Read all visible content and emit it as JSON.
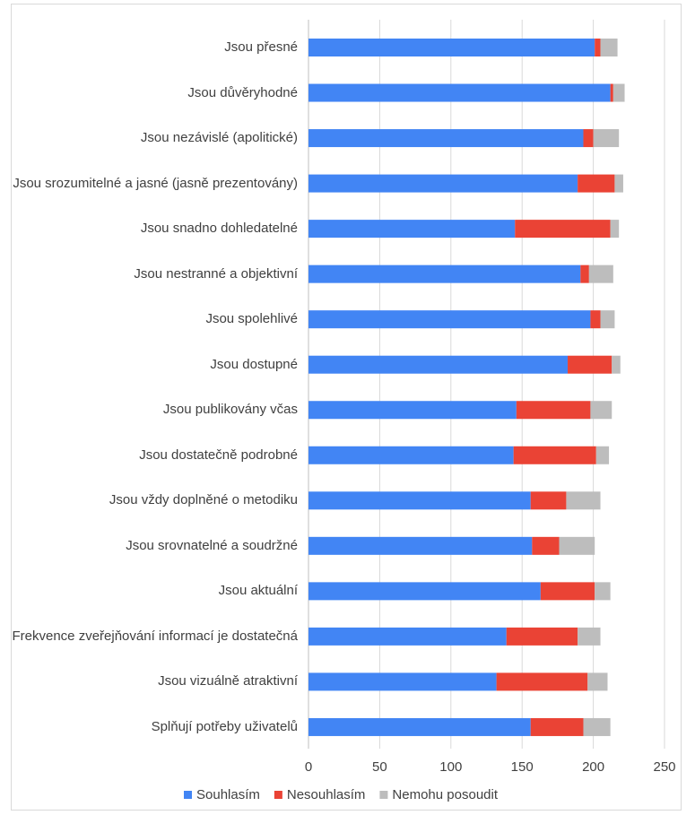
{
  "chart_data": {
    "type": "stacked-barh",
    "categories": [
      "Jsou přesné",
      "Jsou důvěryhodné",
      "Jsou nezávislé (apolitické)",
      "Jsou srozumitelné a jasné (jasně prezentovány)",
      "Jsou snadno dohledatelné",
      "Jsou nestranné a objektivní",
      "Jsou spolehlivé",
      "Jsou dostupné",
      "Jsou publikovány včas",
      "Jsou dostatečně podrobné",
      "Jsou vždy doplněné o metodiku",
      "Jsou srovnatelné a soudržné",
      "Jsou aktuální",
      "Frekvence zveřejňování informací je dostatečná",
      "Jsou vizuálně atraktivní",
      "Splňují potřeby uživatelů"
    ],
    "series": [
      {
        "name": "Souhlasím",
        "color": "#4285f4",
        "values": [
          201,
          212,
          193,
          189,
          145,
          191,
          198,
          182,
          146,
          144,
          156,
          157,
          163,
          139,
          132,
          156
        ]
      },
      {
        "name": "Nesouhlasím",
        "color": "#ea4335",
        "values": [
          4,
          2,
          7,
          26,
          67,
          6,
          7,
          31,
          52,
          58,
          25,
          19,
          38,
          50,
          64,
          37
        ]
      },
      {
        "name": "Nemohu posoudit",
        "color": "#bdbdbd",
        "values": [
          12,
          8,
          18,
          6,
          6,
          17,
          10,
          6,
          15,
          9,
          24,
          25,
          11,
          16,
          14,
          19
        ]
      }
    ],
    "xlim": [
      0,
      250
    ],
    "xticks": [
      0,
      50,
      100,
      150,
      200,
      250
    ],
    "grid": true,
    "legend": "bottom"
  }
}
